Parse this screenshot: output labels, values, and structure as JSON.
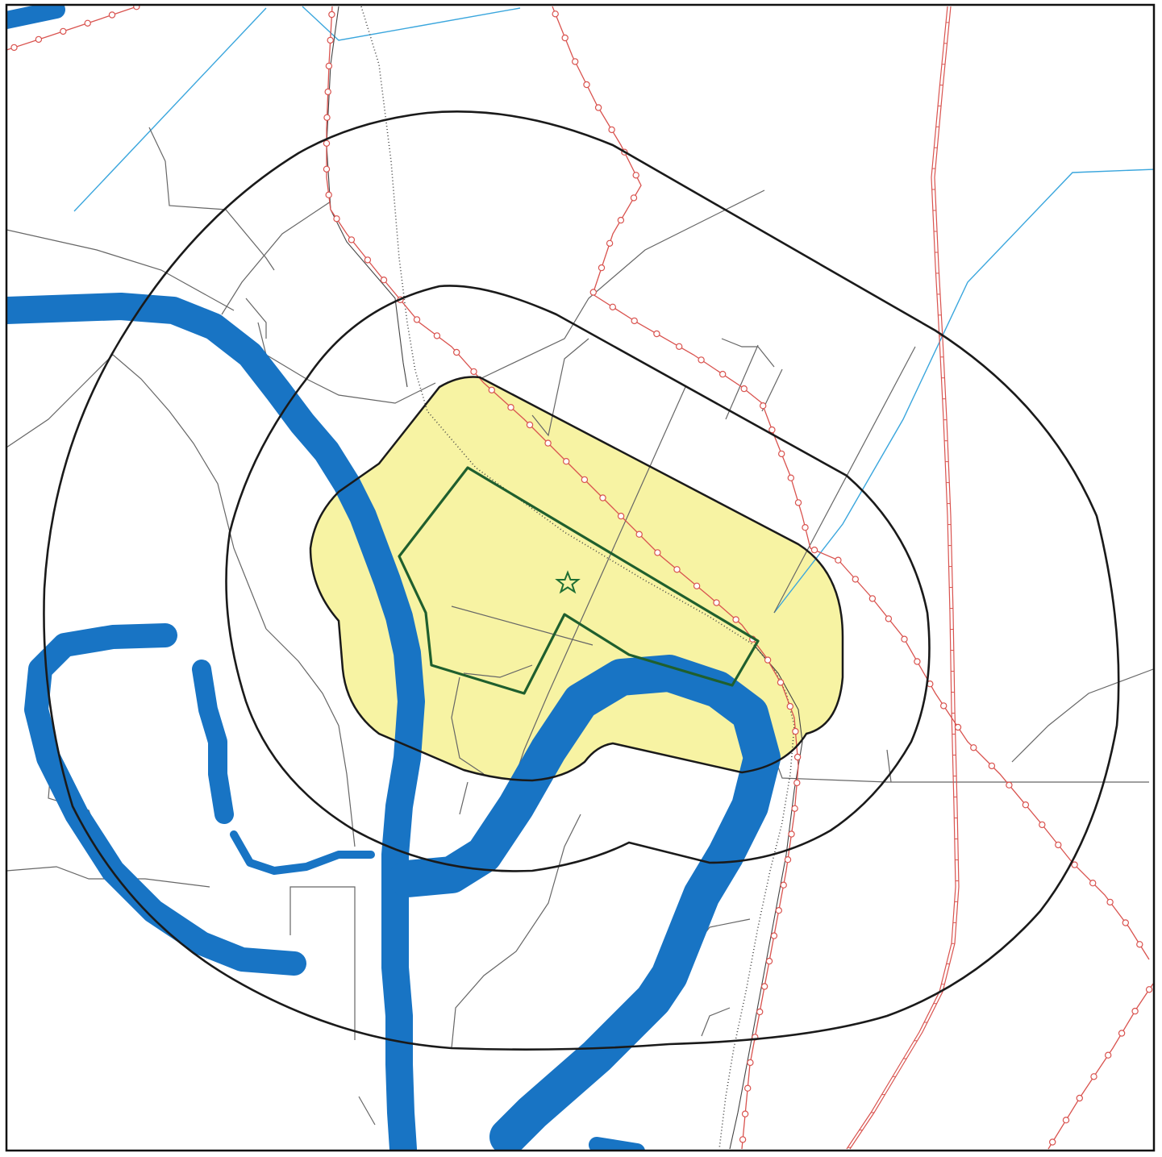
{
  "map": {
    "colors": {
      "background": "#ffffff",
      "frame": "#111111",
      "buffer_ring": "#1a1a1a",
      "highlight_zone_fill": "#f7f3a3",
      "site_boundary": "#1f5f2e",
      "site_marker": "#1f6f34",
      "water_river": "#1874c4",
      "water_stream": "#3aa6dd",
      "road": "#666666",
      "railway": "#444444",
      "pipeline": "#d9534f"
    },
    "layers": [
      {
        "id": "rivers",
        "name": "river-polygons"
      },
      {
        "id": "streams",
        "name": "stream-lines"
      },
      {
        "id": "roads",
        "name": "road-lines"
      },
      {
        "id": "railways",
        "name": "railway-lines"
      },
      {
        "id": "pipelines",
        "name": "pipeline-lines"
      },
      {
        "id": "buffers",
        "name": "buffer-rings"
      },
      {
        "id": "zone",
        "name": "highlighted-zone"
      },
      {
        "id": "site",
        "name": "site-boundary"
      },
      {
        "id": "marker",
        "name": "site-star-marker"
      }
    ],
    "marker": {
      "icon": "star-icon"
    }
  }
}
